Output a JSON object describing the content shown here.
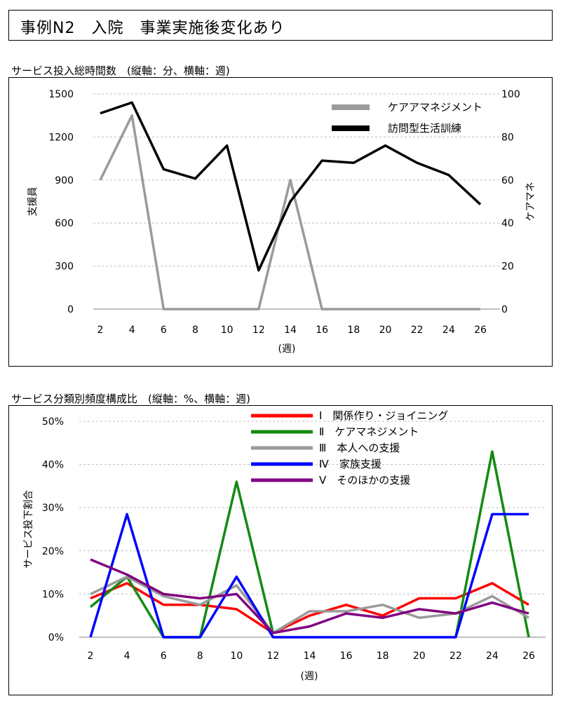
{
  "header": {
    "title": "事例N2　入院　事業実施後変化あり"
  },
  "chart_data": [
    {
      "type": "line",
      "title": "サービス投入総時間数　(縦軸：分、横軸：週)",
      "xlabel": "(週)",
      "ylabel_left": "支援員",
      "ylabel_right": "ケアマネ",
      "x": [
        2,
        4,
        6,
        8,
        10,
        12,
        14,
        16,
        18,
        20,
        22,
        24,
        26
      ],
      "ylim_left": [
        0,
        1500
      ],
      "yticks_left": [
        0,
        300,
        600,
        900,
        1200,
        1500
      ],
      "ylim_right": [
        0,
        100
      ],
      "yticks_right": [
        0,
        20,
        40,
        60,
        80,
        100
      ],
      "grid": true,
      "legend": "top-right",
      "series": [
        {
          "name": "ケアアマネジメント",
          "axis": "right",
          "color": "#9a9a9a",
          "values": [
            60,
            90,
            0,
            0,
            0,
            0,
            60,
            0,
            0,
            0,
            0,
            0,
            0
          ]
        },
        {
          "name": "訪問型生活訓練",
          "axis": "left",
          "color": "#000000",
          "values": [
            1365,
            1440,
            975,
            910,
            1140,
            270,
            750,
            1035,
            1020,
            1140,
            1020,
            935,
            730
          ]
        }
      ]
    },
    {
      "type": "line",
      "title": "サービス分類別頻度構成比　(縦軸：%、横軸：週)",
      "xlabel": "(週)",
      "ylabel": "サービス投下割合",
      "x": [
        2,
        4,
        6,
        8,
        10,
        12,
        14,
        16,
        18,
        20,
        22,
        24,
        26
      ],
      "ylim": [
        0,
        50
      ],
      "yticks": [
        "0%",
        "10%",
        "20%",
        "30%",
        "40%",
        "50%"
      ],
      "grid": true,
      "legend": "top-right",
      "series": [
        {
          "name": "Ⅰ　関係作り・ジョイニング",
          "color": "#ff0000",
          "values": [
            9,
            12.5,
            7.5,
            7.5,
            6.5,
            1,
            5,
            7.5,
            5,
            9,
            9,
            12.5,
            7.5
          ]
        },
        {
          "name": "Ⅱ　ケアマネジメント",
          "color": "#138a13",
          "values": [
            7,
            14,
            0,
            0,
            36,
            1,
            null,
            null,
            null,
            null,
            0,
            43,
            0
          ]
        },
        {
          "name": "Ⅲ　本人への支援",
          "color": "#9a9a9a",
          "values": [
            10,
            14,
            9.5,
            7.5,
            12,
            1,
            6,
            6,
            7.5,
            4.5,
            5.5,
            9.5,
            4.5
          ]
        },
        {
          "name": "Ⅳ　家族支援",
          "color": "#0000ff",
          "values": [
            0,
            28.5,
            0,
            0,
            14,
            0,
            0,
            0,
            0,
            0,
            0,
            28.5,
            28.5
          ]
        },
        {
          "name": "Ⅴ　そのほかの支援",
          "color": "#800080",
          "values": [
            18,
            14.5,
            10,
            9,
            10,
            1,
            2.5,
            5.5,
            4.5,
            6.5,
            5.5,
            8,
            5.5
          ]
        }
      ]
    }
  ]
}
